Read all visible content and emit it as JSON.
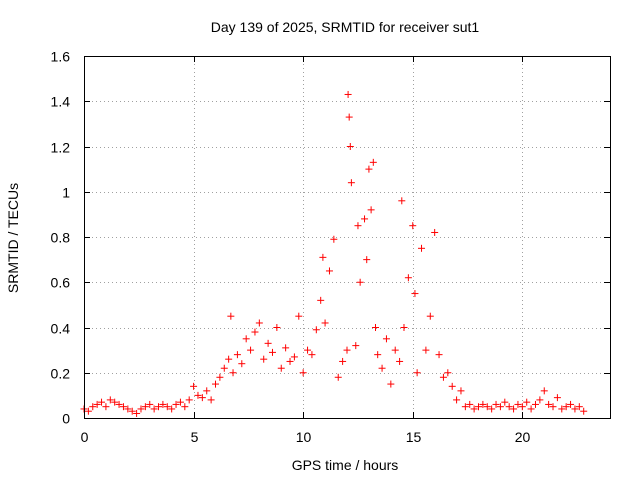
{
  "chart_data": {
    "type": "scatter",
    "title": "Day 139 of 2025, SRMTID for receiver sut1",
    "xlabel": "GPS time / hours",
    "ylabel": "SRMTID / TECUs",
    "xlim": [
      0,
      24
    ],
    "ylim": [
      0,
      1.6
    ],
    "x_ticks": [
      0,
      5,
      10,
      15,
      20
    ],
    "x_tick_labels": [
      "0",
      "5",
      "10",
      "15",
      "20"
    ],
    "y_ticks": [
      0,
      0.2,
      0.4,
      0.6,
      0.8,
      1.0,
      1.2,
      1.4,
      1.6
    ],
    "y_tick_labels": [
      "0",
      "0.2",
      "0.4",
      "0.6",
      "0.8",
      "1",
      "1.2",
      "1.4",
      "1.6"
    ],
    "grid": true,
    "marker": "+",
    "series_color": "#ff0000",
    "series": [
      {
        "name": "sut1",
        "x": [
          0.0,
          0.2,
          0.4,
          0.6,
          0.8,
          1.0,
          1.2,
          1.4,
          1.6,
          1.8,
          2.0,
          2.2,
          2.4,
          2.6,
          2.8,
          3.0,
          3.2,
          3.4,
          3.6,
          3.8,
          4.0,
          4.2,
          4.4,
          4.6,
          4.8,
          5.0,
          5.2,
          5.4,
          5.6,
          5.8,
          6.0,
          6.2,
          6.4,
          6.6,
          6.7,
          6.8,
          7.0,
          7.2,
          7.4,
          7.6,
          7.8,
          8.0,
          8.2,
          8.4,
          8.6,
          8.8,
          9.0,
          9.2,
          9.4,
          9.6,
          9.8,
          10.0,
          10.2,
          10.4,
          10.6,
          10.8,
          10.9,
          11.0,
          11.2,
          11.4,
          11.6,
          11.8,
          12.0,
          12.05,
          12.1,
          12.15,
          12.2,
          12.4,
          12.5,
          12.6,
          12.8,
          12.9,
          13.0,
          13.1,
          13.2,
          13.3,
          13.4,
          13.6,
          13.8,
          14.0,
          14.2,
          14.4,
          14.5,
          14.6,
          14.8,
          15.0,
          15.1,
          15.2,
          15.4,
          15.6,
          15.8,
          16.0,
          16.2,
          16.4,
          16.6,
          16.8,
          17.0,
          17.2,
          17.4,
          17.6,
          17.8,
          18.0,
          18.2,
          18.4,
          18.6,
          18.8,
          19.0,
          19.2,
          19.4,
          19.6,
          19.8,
          20.0,
          20.2,
          20.4,
          20.6,
          20.8,
          21.0,
          21.2,
          21.4,
          21.6,
          21.8,
          22.0,
          22.2,
          22.4,
          22.6,
          22.8
        ],
        "y": [
          0.04,
          0.03,
          0.05,
          0.06,
          0.07,
          0.05,
          0.08,
          0.07,
          0.06,
          0.05,
          0.04,
          0.03,
          0.02,
          0.04,
          0.05,
          0.06,
          0.04,
          0.05,
          0.06,
          0.05,
          0.04,
          0.06,
          0.07,
          0.05,
          0.08,
          0.14,
          0.1,
          0.09,
          0.12,
          0.08,
          0.15,
          0.18,
          0.22,
          0.26,
          0.45,
          0.2,
          0.28,
          0.24,
          0.35,
          0.3,
          0.38,
          0.42,
          0.26,
          0.33,
          0.29,
          0.4,
          0.22,
          0.31,
          0.25,
          0.27,
          0.45,
          0.2,
          0.3,
          0.28,
          0.39,
          0.52,
          0.71,
          0.42,
          0.65,
          0.79,
          0.18,
          0.25,
          0.3,
          1.43,
          1.33,
          1.2,
          1.04,
          0.32,
          0.85,
          0.6,
          0.88,
          0.7,
          1.1,
          0.92,
          1.13,
          0.4,
          0.28,
          0.22,
          0.35,
          0.15,
          0.3,
          0.25,
          0.96,
          0.4,
          0.62,
          0.85,
          0.55,
          0.2,
          0.75,
          0.3,
          0.45,
          0.82,
          0.28,
          0.18,
          0.2,
          0.14,
          0.08,
          0.12,
          0.05,
          0.06,
          0.04,
          0.05,
          0.06,
          0.05,
          0.04,
          0.06,
          0.05,
          0.07,
          0.05,
          0.04,
          0.06,
          0.05,
          0.07,
          0.04,
          0.06,
          0.08,
          0.12,
          0.06,
          0.05,
          0.09,
          0.04,
          0.05,
          0.06,
          0.04,
          0.05,
          0.03
        ]
      }
    ]
  }
}
